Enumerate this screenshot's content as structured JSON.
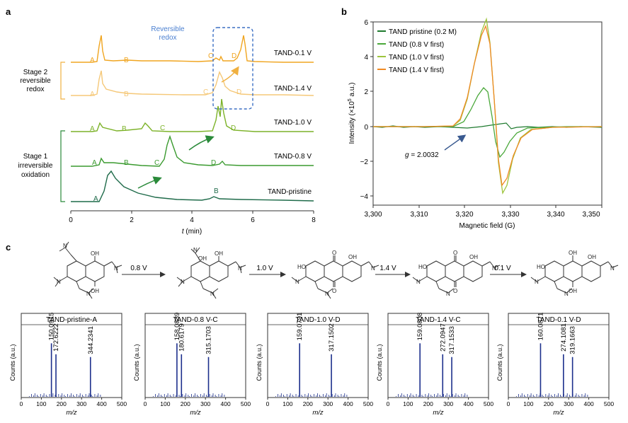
{
  "panels": {
    "a": "a",
    "b": "b",
    "c": "c"
  },
  "chart_data": [
    {
      "type": "line",
      "panel": "a",
      "xlabel_var": "t",
      "xlabel_unit": " (min)",
      "xlim": [
        0,
        8
      ],
      "xticks": [
        "0",
        "2",
        "4",
        "6",
        "8"
      ],
      "series": [
        {
          "name": "TAND-0.1 V",
          "color": "#f0a520",
          "peak_labels": [
            "A",
            "B",
            "C",
            "D"
          ]
        },
        {
          "name": "TAND-1.4 V",
          "color": "#f5c878",
          "peak_labels": [
            "A",
            "B",
            "C",
            "D"
          ]
        },
        {
          "name": "TAND-1.0 V",
          "color": "#7cb228",
          "peak_labels": [
            "A",
            "B",
            "C",
            "D"
          ]
        },
        {
          "name": "TAND-0.8 V",
          "color": "#3a9a2f",
          "peak_labels": [
            "A",
            "B",
            "C",
            "D"
          ]
        },
        {
          "name": "TAND-pristine",
          "color": "#1f6b4a",
          "peak_labels": [
            "A",
            "B"
          ]
        }
      ],
      "annotations": {
        "reversible": [
          "Reversible",
          "redox"
        ],
        "stage2": [
          "Stage 2",
          "reversible",
          "redox"
        ],
        "stage1": [
          "Stage 1",
          "irreversible",
          "oxidation"
        ]
      }
    },
    {
      "type": "line",
      "panel": "b",
      "xlabel": "Magnetic field (G)",
      "ylabel_pre": "Intensity (×10",
      "ylabel_exp": "5",
      "ylabel_post": " a.u.)",
      "xlim": [
        3300,
        3350
      ],
      "ylim": [
        -4.5,
        6
      ],
      "xticks": [
        "3,300",
        "3,310",
        "3,320",
        "3,330",
        "3,340",
        "3,350"
      ],
      "yticks": [
        "6",
        "4",
        "2",
        "0",
        "−2",
        "−4"
      ],
      "legend": "top-left",
      "series": [
        {
          "name": "TAND pristine (0.2 M)",
          "color": "#1e7a2e"
        },
        {
          "name": "TAND (0.8 V first)",
          "color": "#4aa83a"
        },
        {
          "name": "TAND (1.0 V first)",
          "color": "#9dc43c"
        },
        {
          "name": "TAND (1.4 V first)",
          "color": "#f08a24"
        }
      ],
      "g_label": "g",
      "g_value": " = 2.0032"
    }
  ],
  "steps": [
    "0.8 V",
    "1.0 V",
    "1.4 V",
    "0.1 V"
  ],
  "mass_spectra": [
    {
      "title": "TAND-pristine-A",
      "peaks": [
        "150.0915",
        "172.6222",
        "344.2341"
      ]
    },
    {
      "title": "TAND-0.8 V-C",
      "peaks": [
        "158.0889",
        "180.6179",
        "315.1703"
      ]
    },
    {
      "title": "TAND-1.0 V-D",
      "peaks": [
        "159.0791",
        "317.1502"
      ]
    },
    {
      "title": "TAND-1.4 V-C",
      "peaks": [
        "159.0808",
        "272.0947",
        "317.1533"
      ]
    },
    {
      "title": "TAND-0.1 V-D",
      "peaks": [
        "160.0871",
        "274.1081",
        "319.1663"
      ]
    }
  ],
  "ms_axis": {
    "ylabel": "Counts (a.u.)",
    "xlabel": "m/z",
    "xticks": [
      "0",
      "100",
      "200",
      "300",
      "400",
      "500"
    ]
  },
  "mol_labels": {
    "oh": "OH",
    "o": "O",
    "ho": "HO",
    "n": "N"
  }
}
